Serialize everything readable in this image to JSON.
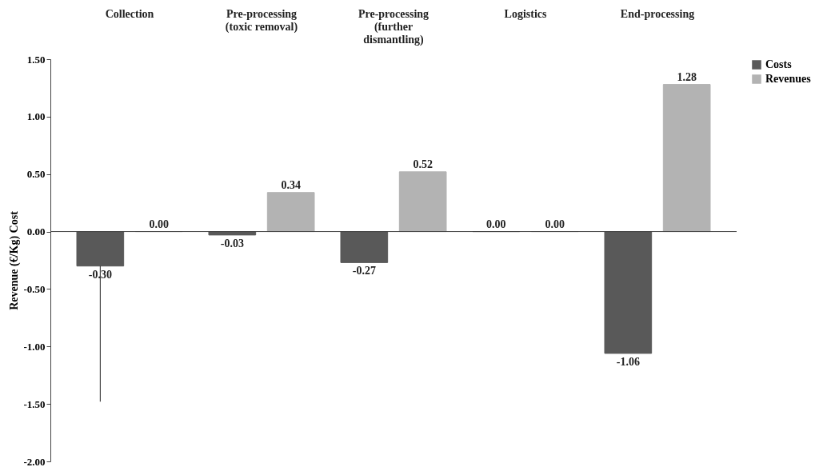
{
  "chart_data": {
    "type": "bar",
    "categories": [
      "Collection",
      "Pre-processing\n(toxic removal)",
      "Pre-processing\n(further\ndismantling)",
      "Logistics",
      "End-processing"
    ],
    "series": [
      {
        "name": "Costs",
        "color": "#595959",
        "values": [
          -0.3,
          -0.03,
          -0.27,
          0.0,
          -1.06
        ],
        "value_labels": [
          "-0.30",
          "-0.03",
          "-0.27",
          "0.00",
          "-1.06"
        ],
        "errors": [
          [
            -1.48,
            -0.3
          ],
          null,
          null,
          null,
          null
        ]
      },
      {
        "name": "Revenues",
        "color": "#b3b3b3",
        "values": [
          0.0,
          0.34,
          0.52,
          0.0,
          1.28
        ],
        "value_labels": [
          "0.00",
          "0.34",
          "0.52",
          "0.00",
          "1.28"
        ]
      }
    ],
    "ref_lines": [
      {
        "axis": "y",
        "value": 0,
        "color": "#444444"
      }
    ],
    "ylabel": "Revenue (€/Kg) Cost",
    "ylim": [
      -2.0,
      1.5
    ],
    "yticks": [
      {
        "value": -2.0,
        "label": "-2.00"
      },
      {
        "value": -1.5,
        "label": "-1.50"
      },
      {
        "value": -1.0,
        "label": "-1.00"
      },
      {
        "value": -0.5,
        "label": "-0.50"
      },
      {
        "value": 0.0,
        "label": "0.00"
      },
      {
        "value": 0.5,
        "label": "0.50"
      },
      {
        "value": 1.0,
        "label": "1.00"
      },
      {
        "value": 1.5,
        "label": "1.50"
      }
    ],
    "grid": false,
    "legend": "right"
  }
}
